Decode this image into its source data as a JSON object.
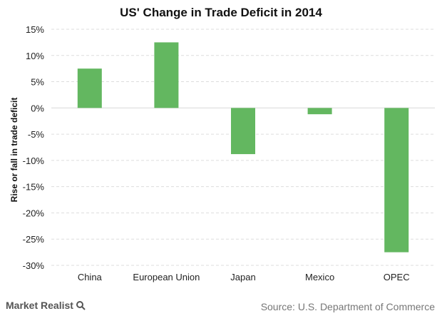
{
  "chart_data": {
    "type": "bar",
    "title": "US' Change in Trade Deficit in 2014",
    "ylabel": "Rise or fall in trade deficit",
    "xlabel": "",
    "categories": [
      "China",
      "European Union",
      "Japan",
      "Mexico",
      "OPEC"
    ],
    "values": [
      7.5,
      12.5,
      -8.8,
      -1.2,
      -27.5
    ],
    "ylim": [
      -30,
      15
    ],
    "yticks": [
      15,
      10,
      5,
      0,
      -5,
      -10,
      -15,
      -20,
      -25,
      -30
    ],
    "ytick_labels": [
      "15%",
      "10%",
      "5%",
      "0%",
      "-5%",
      "-10%",
      "-15%",
      "-20%",
      "-25%",
      "-30%"
    ],
    "grid": true,
    "bar_color": "#63b760",
    "grid_color": "#dddddd",
    "legend": "none"
  },
  "footer": {
    "brand": "Market Realist",
    "source": "Source: U.S. Department of Commerce"
  }
}
